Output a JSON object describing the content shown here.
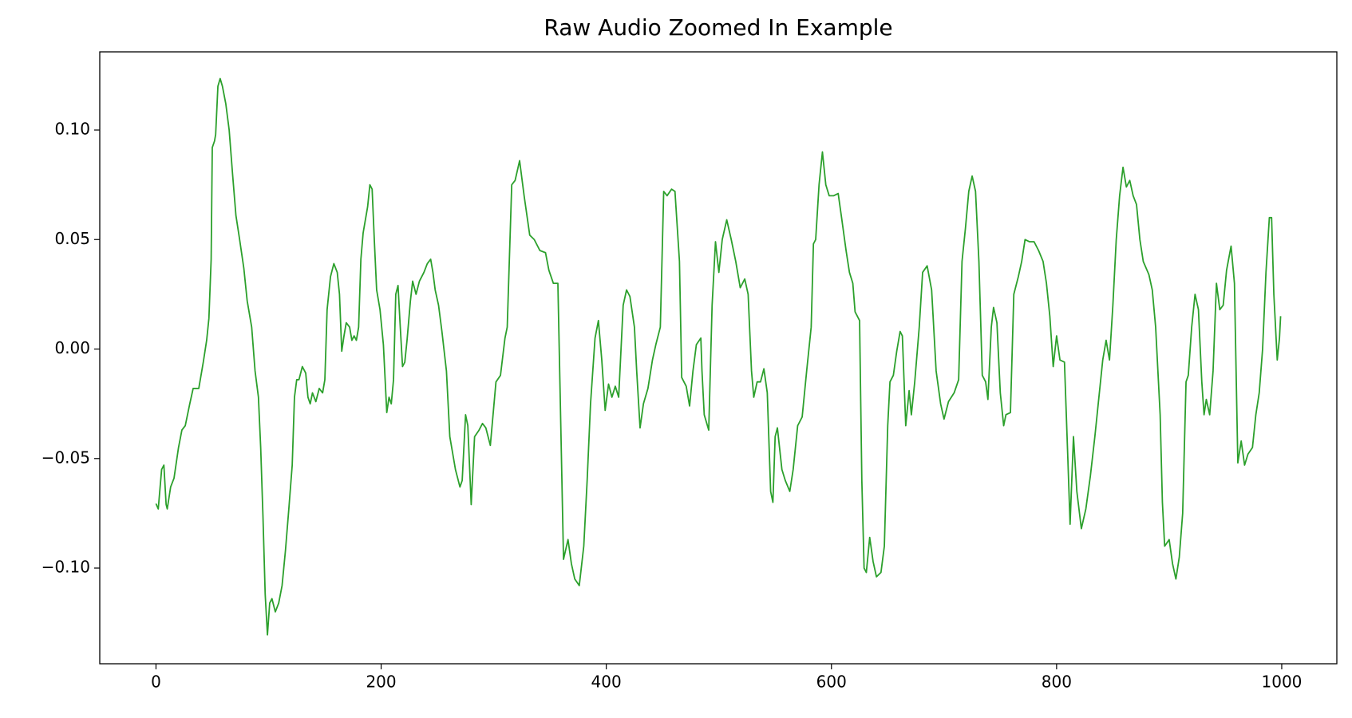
{
  "chart_data": {
    "type": "line",
    "title": "Raw Audio Zoomed In Example",
    "color": "#2ca02c",
    "x": [
      0,
      2,
      5,
      7,
      9,
      10,
      13,
      16,
      20,
      23,
      26,
      30,
      33,
      36,
      38,
      42,
      45,
      47,
      49,
      50,
      52,
      53,
      55,
      57,
      59,
      62,
      65,
      68,
      71,
      74,
      78,
      81,
      85,
      88,
      91,
      93,
      95,
      97,
      99,
      101,
      103,
      106,
      109,
      112,
      115,
      118,
      121,
      123,
      125,
      127,
      130,
      133,
      135,
      137,
      139,
      142,
      145,
      148,
      150,
      152,
      155,
      158,
      161,
      163,
      165,
      167,
      169,
      172,
      174,
      176,
      178,
      180,
      182,
      184,
      186,
      188,
      190,
      192,
      194,
      196,
      199,
      202,
      205,
      207,
      209,
      211,
      213,
      215,
      217,
      219,
      221,
      223,
      226,
      228,
      231,
      234,
      238,
      241,
      244,
      246,
      248,
      251,
      254,
      258,
      261,
      266,
      270,
      272,
      275,
      277,
      280,
      283,
      287,
      290,
      293,
      297,
      302,
      306,
      310,
      312,
      316,
      319,
      323,
      327,
      332,
      336,
      341,
      346,
      349,
      353,
      357,
      359,
      362,
      366,
      369,
      372,
      376,
      380,
      383,
      386,
      390,
      393,
      396,
      399,
      402,
      405,
      408,
      411,
      415,
      418,
      421,
      425,
      427,
      430,
      433,
      437,
      441,
      444,
      448,
      451,
      454,
      458,
      461,
      465,
      467,
      471,
      474,
      477,
      480,
      484,
      485,
      487,
      491,
      494,
      497,
      500,
      503,
      507,
      511,
      515,
      519,
      523,
      526,
      529,
      531,
      534,
      537,
      540,
      543,
      546,
      548,
      550,
      552,
      556,
      559,
      563,
      566,
      570,
      574,
      578,
      582,
      584,
      586,
      589,
      592,
      595,
      598,
      602,
      606,
      609,
      613,
      616,
      619,
      621,
      625,
      627,
      629,
      631,
      634,
      637,
      640,
      644,
      647,
      650,
      652,
      655,
      658,
      661,
      663,
      666,
      669,
      671,
      674,
      678,
      681,
      685,
      689,
      693,
      697,
      700,
      704,
      709,
      713,
      716,
      719,
      722,
      725,
      728,
      731,
      734,
      737,
      739,
      742,
      744,
      747,
      750,
      753,
      755,
      759,
      762,
      766,
      769,
      772,
      776,
      780,
      784,
      788,
      791,
      794,
      797,
      800,
      803,
      807,
      810,
      812,
      815,
      818,
      822,
      826,
      830,
      834,
      837,
      841,
      844,
      847,
      850,
      853,
      856,
      859,
      862,
      865,
      868,
      871,
      874,
      877,
      882,
      885,
      888,
      892,
      894,
      896,
      900,
      903,
      906,
      909,
      912,
      915,
      917,
      920,
      923,
      926,
      929,
      931,
      933,
      936,
      939,
      942,
      945,
      948,
      951,
      955,
      958,
      961,
      964,
      967,
      970,
      974,
      977,
      980,
      983,
      986,
      989,
      991,
      993,
      996,
      998,
      999
    ],
    "values": [
      -0.0706,
      -0.073,
      -0.055,
      -0.053,
      -0.071,
      -0.073,
      -0.063,
      -0.059,
      -0.045,
      -0.037,
      -0.035,
      -0.025,
      -0.018,
      -0.018,
      -0.018,
      -0.006,
      0.004,
      0.014,
      0.041,
      0.092,
      0.095,
      0.098,
      0.12,
      0.1235,
      0.12,
      0.112,
      0.1,
      0.08,
      0.061,
      0.051,
      0.037,
      0.022,
      0.01,
      -0.01,
      -0.022,
      -0.045,
      -0.076,
      -0.112,
      -0.1305,
      -0.116,
      -0.114,
      -0.12,
      -0.116,
      -0.108,
      -0.092,
      -0.073,
      -0.053,
      -0.022,
      -0.014,
      -0.014,
      -0.008,
      -0.011,
      -0.022,
      -0.025,
      -0.02,
      -0.024,
      -0.018,
      -0.02,
      -0.014,
      0.018,
      0.033,
      0.039,
      0.035,
      0.025,
      -0.001,
      0.006,
      0.012,
      0.01,
      0.004,
      0.006,
      0.004,
      0.01,
      0.041,
      0.053,
      0.059,
      0.065,
      0.075,
      0.073,
      0.049,
      0.027,
      0.018,
      0.002,
      -0.029,
      -0.022,
      -0.025,
      -0.014,
      0.025,
      0.029,
      0.01,
      -0.008,
      -0.006,
      0.004,
      0.022,
      0.031,
      0.025,
      0.031,
      0.035,
      0.039,
      0.041,
      0.035,
      0.027,
      0.02,
      0.008,
      -0.01,
      -0.04,
      -0.055,
      -0.063,
      -0.06,
      -0.03,
      -0.035,
      -0.071,
      -0.04,
      -0.037,
      -0.034,
      -0.036,
      -0.044,
      -0.015,
      -0.012,
      0.005,
      0.01,
      0.075,
      0.077,
      0.086,
      0.07,
      0.052,
      0.05,
      0.045,
      0.044,
      0.036,
      0.03,
      0.03,
      -0.02,
      -0.096,
      -0.087,
      -0.098,
      -0.105,
      -0.108,
      -0.09,
      -0.06,
      -0.025,
      0.005,
      0.013,
      -0.005,
      -0.028,
      -0.016,
      -0.022,
      -0.017,
      -0.022,
      0.02,
      0.027,
      0.024,
      0.01,
      -0.01,
      -0.036,
      -0.025,
      -0.018,
      -0.005,
      0.002,
      0.01,
      0.072,
      0.07,
      0.073,
      0.072,
      0.04,
      -0.013,
      -0.017,
      -0.026,
      -0.01,
      0.002,
      0.005,
      -0.01,
      -0.03,
      -0.037,
      0.02,
      0.049,
      0.035,
      0.05,
      0.059,
      0.05,
      0.04,
      0.028,
      0.032,
      0.025,
      -0.01,
      -0.022,
      -0.015,
      -0.015,
      -0.009,
      -0.02,
      -0.065,
      -0.07,
      -0.04,
      -0.036,
      -0.055,
      -0.06,
      -0.065,
      -0.055,
      -0.035,
      -0.031,
      -0.01,
      0.01,
      0.048,
      0.05,
      0.075,
      0.09,
      0.075,
      0.07,
      0.07,
      0.071,
      0.06,
      0.045,
      0.035,
      0.03,
      0.017,
      0.013,
      -0.06,
      -0.1,
      -0.102,
      -0.086,
      -0.097,
      -0.104,
      -0.102,
      -0.09,
      -0.035,
      -0.015,
      -0.012,
      -0.001,
      0.008,
      0.006,
      -0.035,
      -0.019,
      -0.03,
      -0.015,
      0.01,
      0.035,
      0.038,
      0.027,
      -0.01,
      -0.025,
      -0.032,
      -0.024,
      -0.02,
      -0.014,
      0.04,
      0.055,
      0.072,
      0.079,
      0.072,
      0.04,
      -0.012,
      -0.015,
      -0.023,
      0.01,
      0.019,
      0.012,
      -0.02,
      -0.035,
      -0.03,
      -0.029,
      0.025,
      0.033,
      0.04,
      0.05,
      0.049,
      0.049,
      0.045,
      0.04,
      0.03,
      0.015,
      -0.008,
      0.006,
      -0.005,
      -0.006,
      -0.05,
      -0.08,
      -0.04,
      -0.065,
      -0.082,
      -0.073,
      -0.058,
      -0.04,
      -0.025,
      -0.005,
      0.004,
      -0.005,
      0.02,
      0.05,
      0.07,
      0.083,
      0.074,
      0.077,
      0.07,
      0.066,
      0.05,
      0.04,
      0.034,
      0.027,
      0.01,
      -0.03,
      -0.07,
      -0.09,
      -0.087,
      -0.098,
      -0.105,
      -0.095,
      -0.075,
      -0.015,
      -0.012,
      0.01,
      0.025,
      0.018,
      -0.015,
      -0.03,
      -0.023,
      -0.03,
      -0.01,
      0.03,
      0.018,
      0.02,
      0.036,
      0.047,
      0.03,
      -0.052,
      -0.042,
      -0.053,
      -0.048,
      -0.045,
      -0.03,
      -0.02,
      0,
      0.035,
      0.06,
      0.06,
      0.025,
      -0.005,
      0.005,
      0.015
    ],
    "xlim": [
      -49.95,
      1048.95
    ],
    "ylim": [
      -0.1437,
      0.1357
    ],
    "xticks": [
      0,
      200,
      400,
      600,
      800,
      1000
    ],
    "yticks": [
      {
        "value": -0.1,
        "label": "−0.10"
      },
      {
        "value": -0.05,
        "label": "−0.05"
      },
      {
        "value": 0,
        "label": "0.00"
      },
      {
        "value": 0.05,
        "label": "0.05"
      },
      {
        "value": 0.1,
        "label": "0.10"
      }
    ]
  }
}
